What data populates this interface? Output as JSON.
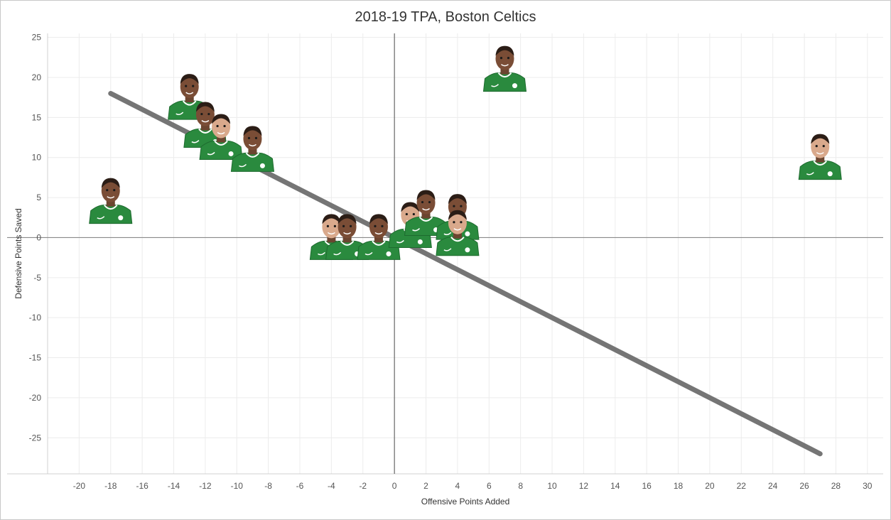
{
  "chart_data": {
    "type": "scatter",
    "title": "2018-19 TPA, Boston Celtics",
    "xlabel": "Offensive Points Added",
    "ylabel": "Defensive Points Saved",
    "xlim": [
      -22,
      31
    ],
    "ylim": [
      -29.5,
      25.5
    ],
    "xticks": [
      -20,
      -18,
      -16,
      -14,
      -12,
      -10,
      -8,
      -6,
      -4,
      -2,
      0,
      2,
      4,
      6,
      8,
      10,
      12,
      14,
      16,
      18,
      20,
      22,
      24,
      26,
      28,
      30
    ],
    "yticks": [
      25,
      20,
      15,
      10,
      5,
      0,
      -5,
      -10,
      -15,
      -20,
      -25
    ],
    "grid": true,
    "marker": "player-headshot-icon",
    "points": [
      {
        "x": 7,
        "y": 19.5
      },
      {
        "x": 27,
        "y": 8.5
      },
      {
        "x": -13,
        "y": 16
      },
      {
        "x": -12,
        "y": 12.5
      },
      {
        "x": -11,
        "y": 11
      },
      {
        "x": -9,
        "y": 9.5
      },
      {
        "x": -18,
        "y": 3
      },
      {
        "x": -4,
        "y": -1.5
      },
      {
        "x": -3,
        "y": -1.5
      },
      {
        "x": -1,
        "y": -1.5
      },
      {
        "x": 1,
        "y": 0
      },
      {
        "x": 2,
        "y": 1.5
      },
      {
        "x": 4,
        "y": 1
      },
      {
        "x": 4,
        "y": -1
      }
    ],
    "trend_line": {
      "x": [
        -18,
        27
      ],
      "y": [
        18,
        -27
      ]
    },
    "colors": {
      "jersey": "#2a8a3e",
      "line": "#6e6e6e",
      "grid": "#ececec",
      "axis": "#666666"
    }
  }
}
